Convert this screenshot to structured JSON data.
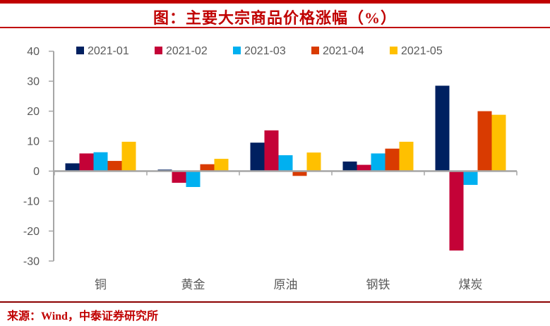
{
  "page": {
    "title": "图：主要大宗商品价格涨幅（%）",
    "source": "来源：Wind，中泰证券研究所"
  },
  "colors": {
    "accent_red": "#C00000",
    "rule_dark_red": "#8B0000",
    "axis_gray": "#A6A6A6",
    "label_gray": "#595959"
  },
  "chart_data": {
    "type": "bar",
    "title": "图：主要大宗商品价格涨幅（%）",
    "categories": [
      "铜",
      "黄金",
      "原油",
      "钢铁",
      "煤炭"
    ],
    "series": [
      {
        "name": "2021-01",
        "color": "#002060",
        "values": [
          2.6,
          0.5,
          9.5,
          3.2,
          28.5
        ]
      },
      {
        "name": "2021-02",
        "color": "#C40237",
        "values": [
          5.9,
          -3.9,
          13.6,
          2.1,
          -26.5
        ]
      },
      {
        "name": "2021-03",
        "color": "#00B0F0",
        "values": [
          6.3,
          -5.3,
          5.3,
          5.9,
          -4.6
        ]
      },
      {
        "name": "2021-04",
        "color": "#D93B01",
        "values": [
          3.4,
          2.3,
          -1.6,
          7.5,
          20.0
        ]
      },
      {
        "name": "2021-05",
        "color": "#FFC000",
        "values": [
          9.8,
          4.1,
          6.2,
          9.8,
          18.8
        ]
      }
    ],
    "ylim": [
      -30,
      40
    ],
    "ytick_step": 10,
    "ytick_labels": [
      "-30",
      "-20",
      "-10",
      "0",
      "10",
      "20",
      "30",
      "40"
    ],
    "grid": false,
    "legend_position": "top"
  }
}
